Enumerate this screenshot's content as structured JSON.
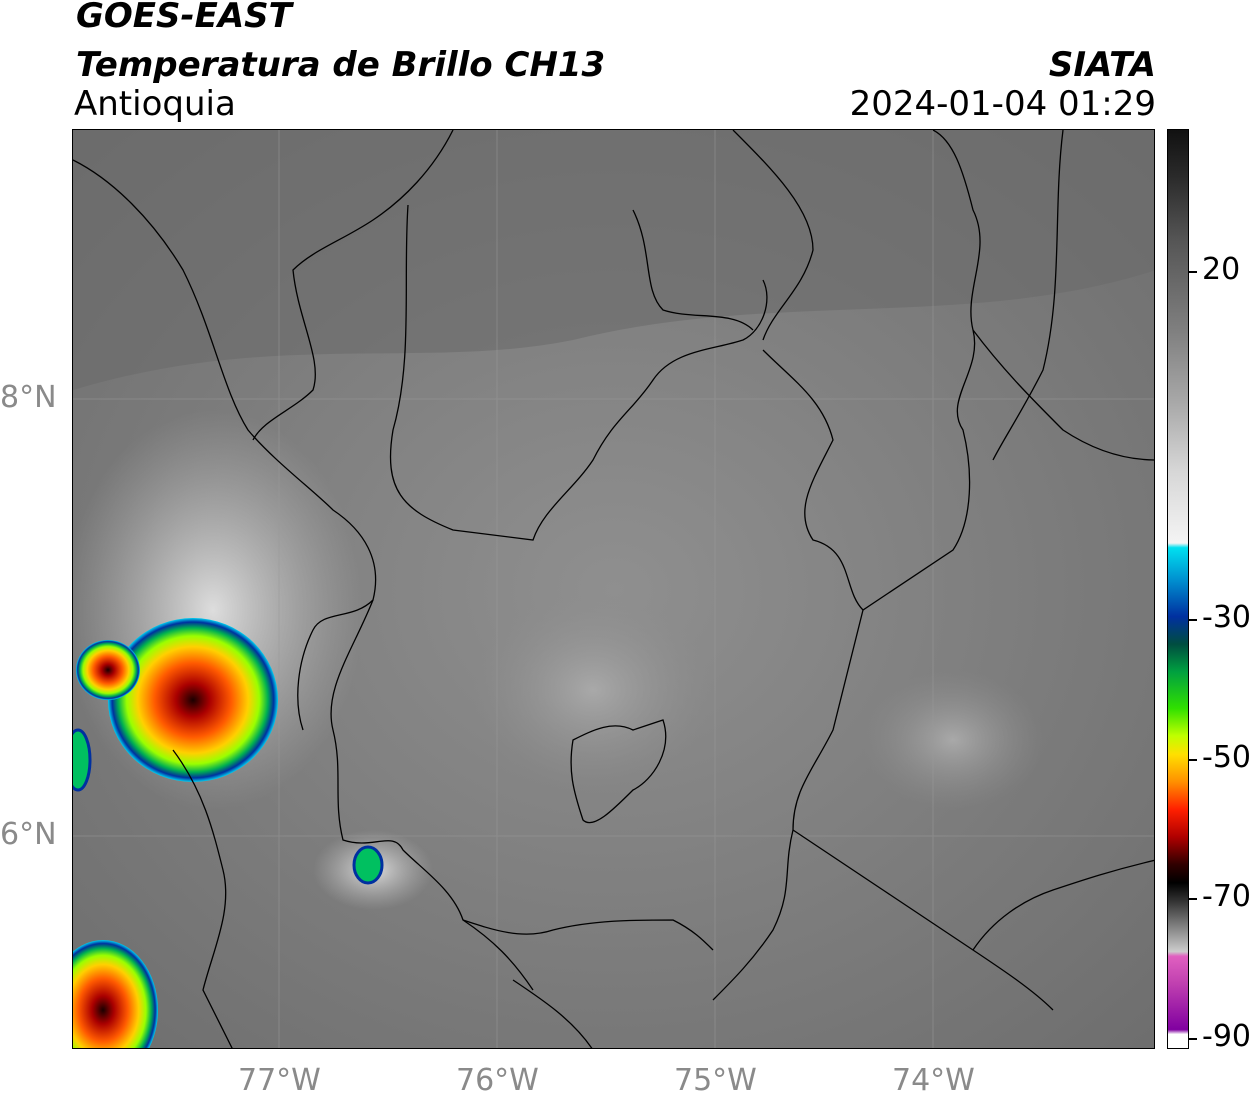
{
  "header": {
    "satellite": "GOES-EAST",
    "product": "Temperatura de Brillo CH13",
    "region": "Antioquia",
    "agency": "SIATA",
    "datetime": "2024-01-04 01:29"
  },
  "map": {
    "lon_ticks": [
      "77°W",
      "76°W",
      "75°W",
      "74°W"
    ],
    "lat_ticks": [
      "8°N",
      "6°N"
    ]
  },
  "colorbar": {
    "ticks": [
      "20",
      "-30",
      "-50",
      "-70",
      "-90"
    ]
  }
}
